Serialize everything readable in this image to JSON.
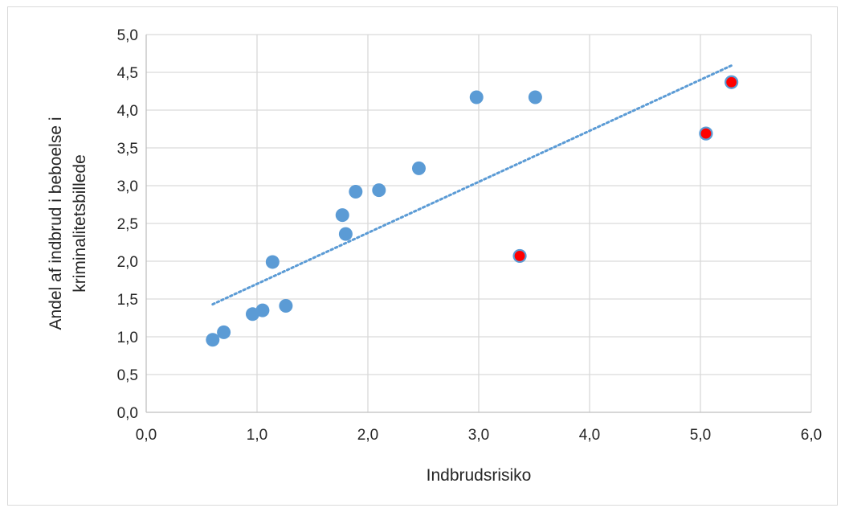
{
  "chart_data": {
    "type": "scatter",
    "title": "",
    "xlabel": "Indbrudsrisiko",
    "ylabel_lines": [
      "Andel af indbrud i beboelse i",
      "kriminalitetsbillede"
    ],
    "xlim": [
      0,
      6
    ],
    "ylim": [
      0,
      5
    ],
    "x_ticks": [
      "0,0",
      "1,0",
      "2,0",
      "3,0",
      "4,0",
      "5,0",
      "6,0"
    ],
    "y_ticks": [
      "0,0",
      "0,5",
      "1,0",
      "1,5",
      "2,0",
      "2,5",
      "3,0",
      "3,5",
      "4,0",
      "4,5",
      "5,0"
    ],
    "grid": true,
    "legend": "none",
    "series": [
      {
        "color": "#5b9bd5",
        "points": [
          [
            0.6,
            0.96
          ],
          [
            0.7,
            1.06
          ],
          [
            0.96,
            1.3
          ],
          [
            1.05,
            1.35
          ],
          [
            1.14,
            1.99
          ],
          [
            1.26,
            1.41
          ],
          [
            1.77,
            2.61
          ],
          [
            1.8,
            2.36
          ],
          [
            1.89,
            2.92
          ],
          [
            2.1,
            2.94
          ],
          [
            2.46,
            3.23
          ],
          [
            2.98,
            4.17
          ],
          [
            3.51,
            4.17
          ]
        ]
      },
      {
        "color": "#ff0000",
        "stroke": "#5b9bd5",
        "points": [
          [
            3.37,
            2.07
          ],
          [
            5.05,
            3.69
          ],
          [
            5.28,
            4.37
          ]
        ]
      }
    ],
    "trendline": {
      "type": "linear",
      "style": "dotted",
      "color": "#5b9bd5",
      "x_range": [
        0.6,
        5.28
      ],
      "y_range": [
        1.43,
        4.59
      ]
    },
    "colors": {
      "grid": "#d9d9d9",
      "axis": "#bfbfbf"
    }
  }
}
